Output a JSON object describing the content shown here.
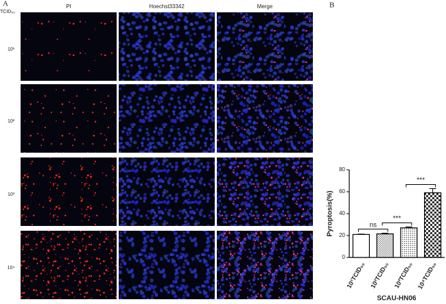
{
  "figure": {
    "panel_a": "A",
    "panel_b": "B",
    "row_header": "TCID₅₀",
    "columns": [
      "PI",
      "Hoechst33342",
      "Merge"
    ],
    "rows": [
      "10¹",
      "10²",
      "10³",
      "10⁴"
    ]
  },
  "chart_data": {
    "type": "bar",
    "ylabel": "Pyroptosis(%)",
    "xlabel": "SCAU-HN06",
    "categories": [
      "10¹TCID₅₀",
      "10²TCID₅₀",
      "10³TCID₅₀",
      "10⁴TCID₅₀"
    ],
    "values": [
      21,
      21.5,
      27,
      59
    ],
    "errors": [
      0.3,
      0.6,
      0.8,
      3.8
    ],
    "patterns": [
      "none",
      "diagonal",
      "dots",
      "checker"
    ],
    "color": "#000000",
    "annotations": [
      "ns",
      "***",
      "***"
    ],
    "ylim": [
      0,
      80
    ],
    "yticks": [
      0,
      20,
      40,
      60,
      80
    ]
  }
}
